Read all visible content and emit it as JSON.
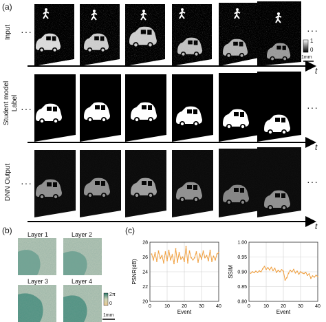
{
  "figure": {
    "panels": {
      "a": "(a)",
      "b": "(b)",
      "c": "(c)"
    },
    "rows": [
      {
        "label_line1": "Input",
        "label_line2": ""
      },
      {
        "label_line1": "Student model",
        "label_line2": "Label"
      },
      {
        "label_line1": "DNN Output",
        "label_line2": ""
      }
    ],
    "time_label": "t",
    "ellipsis": "···",
    "colorbar_a": {
      "max": "1",
      "min": "0"
    },
    "scalebar_a": "1mm",
    "layers": [
      "Layer 1",
      "Layer 2",
      "Layer 3",
      "Layer 4"
    ],
    "colorbar_b": {
      "max": "2π",
      "min": "0"
    },
    "scalebar_b": "1mm"
  },
  "chart_data": [
    {
      "type": "line",
      "xlabel": "Event",
      "ylabel": "PSNR(dB)",
      "xlim": [
        0,
        40
      ],
      "ylim": [
        20,
        28
      ],
      "xticks": [
        0,
        10,
        20,
        30,
        40
      ],
      "yticks": [
        20,
        22,
        24,
        26,
        28
      ],
      "grid": true,
      "color": "#f0a040",
      "x": [
        1,
        2,
        3,
        4,
        5,
        6,
        7,
        8,
        9,
        10,
        11,
        12,
        13,
        14,
        15,
        16,
        17,
        18,
        19,
        20,
        21,
        22,
        23,
        24,
        25,
        26,
        27,
        28,
        29,
        30,
        31,
        32,
        33,
        34,
        35,
        36,
        37,
        38,
        39,
        40
      ],
      "y": [
        26.4,
        25.6,
        26.6,
        25.4,
        26.8,
        25.8,
        26.2,
        25.2,
        26.7,
        25.5,
        26.9,
        25.6,
        26.3,
        25.1,
        27.1,
        25.3,
        26.6,
        25.7,
        26.0,
        25.4,
        27.4,
        25.2,
        26.8,
        25.9,
        25.6,
        25.9,
        26.7,
        25.3,
        26.4,
        25.7,
        26.8,
        25.9,
        26.2,
        25.5,
        26.9,
        25.4,
        26.1,
        25.6,
        26.4,
        26.6
      ]
    },
    {
      "type": "line",
      "xlabel": "Event",
      "ylabel": "SSIM",
      "xlim": [
        0,
        40
      ],
      "ylim": [
        0.8,
        1.0
      ],
      "xticks": [
        0,
        10,
        20,
        30,
        40
      ],
      "yticks": [
        0.8,
        0.85,
        0.9,
        0.95,
        1.0
      ],
      "ytick_labels": [
        "0.80",
        "0.85",
        "0.90",
        "0.95",
        "1.00"
      ],
      "grid": true,
      "color": "#f0a040",
      "x": [
        1,
        2,
        3,
        4,
        5,
        6,
        7,
        8,
        9,
        10,
        11,
        12,
        13,
        14,
        15,
        16,
        17,
        18,
        19,
        20,
        21,
        22,
        23,
        24,
        25,
        26,
        27,
        28,
        29,
        30,
        31,
        32,
        33,
        34,
        35,
        36,
        37,
        38,
        39,
        40
      ],
      "y": [
        0.895,
        0.9,
        0.897,
        0.902,
        0.898,
        0.903,
        0.9,
        0.91,
        0.918,
        0.908,
        0.914,
        0.906,
        0.915,
        0.904,
        0.912,
        0.898,
        0.905,
        0.9,
        0.907,
        0.902,
        0.872,
        0.88,
        0.895,
        0.905,
        0.9,
        0.908,
        0.896,
        0.902,
        0.892,
        0.9,
        0.896,
        0.894,
        0.898,
        0.888,
        0.893,
        0.878,
        0.886,
        0.882,
        0.888,
        0.884
      ]
    }
  ]
}
